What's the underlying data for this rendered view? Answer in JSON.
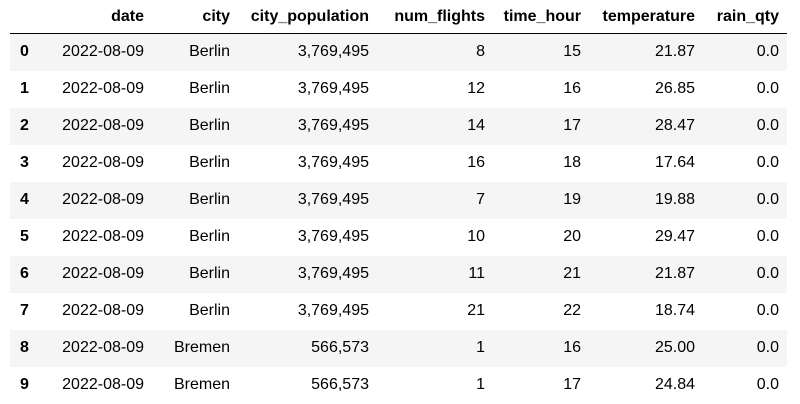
{
  "table": {
    "index_header": "",
    "columns": [
      "date",
      "city",
      "city_population",
      "num_flights",
      "time_hour",
      "temperature",
      "rain_qty"
    ],
    "rows": [
      {
        "index": "0",
        "cells": [
          "2022-08-09",
          "Berlin",
          "3,769,495",
          "8",
          "15",
          "21.87",
          "0.0"
        ]
      },
      {
        "index": "1",
        "cells": [
          "2022-08-09",
          "Berlin",
          "3,769,495",
          "12",
          "16",
          "26.85",
          "0.0"
        ]
      },
      {
        "index": "2",
        "cells": [
          "2022-08-09",
          "Berlin",
          "3,769,495",
          "14",
          "17",
          "28.47",
          "0.0"
        ]
      },
      {
        "index": "3",
        "cells": [
          "2022-08-09",
          "Berlin",
          "3,769,495",
          "16",
          "18",
          "17.64",
          "0.0"
        ]
      },
      {
        "index": "4",
        "cells": [
          "2022-08-09",
          "Berlin",
          "3,769,495",
          "7",
          "19",
          "19.88",
          "0.0"
        ]
      },
      {
        "index": "5",
        "cells": [
          "2022-08-09",
          "Berlin",
          "3,769,495",
          "10",
          "20",
          "29.47",
          "0.0"
        ]
      },
      {
        "index": "6",
        "cells": [
          "2022-08-09",
          "Berlin",
          "3,769,495",
          "11",
          "21",
          "21.87",
          "0.0"
        ]
      },
      {
        "index": "7",
        "cells": [
          "2022-08-09",
          "Berlin",
          "3,769,495",
          "21",
          "22",
          "18.74",
          "0.0"
        ]
      },
      {
        "index": "8",
        "cells": [
          "2022-08-09",
          "Bremen",
          "566,573",
          "1",
          "16",
          "25.00",
          "0.0"
        ]
      },
      {
        "index": "9",
        "cells": [
          "2022-08-09",
          "Bremen",
          "566,573",
          "1",
          "17",
          "24.84",
          "0.0"
        ]
      }
    ]
  }
}
